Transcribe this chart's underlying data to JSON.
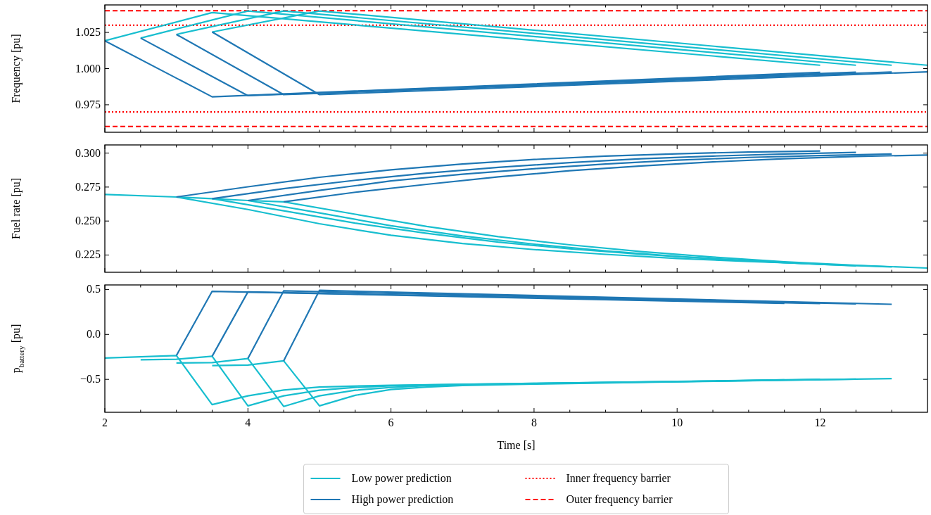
{
  "chart_data": [
    {
      "type": "line",
      "ylabel": "Frequency [pu]",
      "xlim": [
        2,
        13.5
      ],
      "ylim": [
        0.956,
        1.044
      ],
      "xticks": [
        2,
        {
          "value": 2.5,
          "label": null
        },
        {
          "value": 3,
          "label": null
        },
        {
          "value": 3.5,
          "label": null
        },
        4,
        {
          "value": 4.5,
          "label": null
        },
        {
          "value": 5,
          "label": null
        },
        {
          "value": 5.5,
          "label": null
        },
        6,
        {
          "value": 6.5,
          "label": null
        },
        {
          "value": 7,
          "label": null
        },
        {
          "value": 7.5,
          "label": null
        },
        8,
        {
          "value": 8.5,
          "label": null
        },
        {
          "value": 9,
          "label": null
        },
        {
          "value": 9.5,
          "label": null
        },
        10,
        {
          "value": 10.5,
          "label": null
        },
        {
          "value": 11,
          "label": null
        },
        {
          "value": 11.5,
          "label": null
        },
        12,
        {
          "value": 12.5,
          "label": null
        },
        {
          "value": 13,
          "label": null
        }
      ],
      "yticks": [
        0.975,
        {
          "value": 1,
          "label": "1.000"
        },
        1.025
      ],
      "tick_labels": "y",
      "legend": "bottom",
      "ref_lines": [
        {
          "axis": "y",
          "value": 1.03,
          "label": "Inner frequency barrier",
          "color": "#ff0000",
          "line_style": "dotted"
        },
        {
          "axis": "y",
          "value": 0.97,
          "color": "#ff0000",
          "line_style": "dotted"
        },
        {
          "axis": "y",
          "value": 1.04,
          "label": "Outer frequency barrier",
          "color": "#ff0000",
          "line_style": "dashed"
        },
        {
          "axis": "y",
          "value": 0.96,
          "color": "#ff0000",
          "line_style": "dashed"
        }
      ],
      "series": [
        {
          "name": "Low power prediction",
          "color": "#17becf",
          "x": [
            2,
            3.5,
            12
          ],
          "values": [
            1.0192,
            1.0387,
            1.0023
          ]
        },
        {
          "color": "#17becf",
          "x": [
            2.5,
            4,
            12.5
          ],
          "values": [
            1.0211,
            1.0398,
            1.0023
          ]
        },
        {
          "color": "#17becf",
          "x": [
            3,
            4.5,
            13
          ],
          "values": [
            1.0236,
            1.0398,
            1.0023
          ]
        },
        {
          "color": "#17becf",
          "x": [
            3.5,
            5,
            13.5
          ],
          "values": [
            1.0253,
            1.0398,
            1.0023
          ]
        },
        {
          "name": "High power prediction",
          "color": "#1f77b4",
          "x": [
            2,
            3.5,
            12
          ],
          "values": [
            1.0192,
            0.9805,
            0.9974
          ]
        },
        {
          "color": "#1f77b4",
          "x": [
            2.5,
            4,
            12.5
          ],
          "values": [
            1.0211,
            0.9813,
            0.9975
          ]
        },
        {
          "color": "#1f77b4",
          "x": [
            3,
            4.5,
            13
          ],
          "values": [
            1.0236,
            0.982,
            0.9977
          ]
        },
        {
          "color": "#1f77b4",
          "x": [
            3.5,
            5,
            13.5
          ],
          "values": [
            1.0253,
            0.982,
            0.9978
          ]
        }
      ]
    },
    {
      "type": "line",
      "ylabel": "Fuel rate [pu]",
      "xlim": [
        2,
        13.5
      ],
      "ylim": [
        0.2123,
        0.306
      ],
      "xticks": [
        2,
        {
          "value": 2.5,
          "label": null
        },
        {
          "value": 3,
          "label": null
        },
        {
          "value": 3.5,
          "label": null
        },
        4,
        {
          "value": 4.5,
          "label": null
        },
        {
          "value": 5,
          "label": null
        },
        {
          "value": 5.5,
          "label": null
        },
        6,
        {
          "value": 6.5,
          "label": null
        },
        {
          "value": 7,
          "label": null
        },
        {
          "value": 7.5,
          "label": null
        },
        8,
        {
          "value": 8.5,
          "label": null
        },
        {
          "value": 9,
          "label": null
        },
        {
          "value": 9.5,
          "label": null
        },
        10,
        {
          "value": 10.5,
          "label": null
        },
        {
          "value": 11,
          "label": null
        },
        {
          "value": 11.5,
          "label": null
        },
        12,
        {
          "value": 12.5,
          "label": null
        },
        {
          "value": 13,
          "label": null
        }
      ],
      "yticks": [
        0.225,
        {
          "value": 0.25,
          "label": "0.250"
        },
        0.275,
        {
          "value": 0.3,
          "label": "0.300"
        }
      ],
      "tick_labels": "y",
      "series": [
        {
          "color": "#17becf",
          "x": [
            3,
            4,
            5,
            6,
            7,
            8,
            9,
            10,
            11,
            12
          ],
          "values": [
            0.2677,
            0.2585,
            0.248,
            0.2395,
            0.2335,
            0.229,
            0.2255,
            0.2225,
            0.2202,
            0.2184
          ]
        },
        {
          "color": "#17becf",
          "x": [
            3.5,
            4.5,
            5.5,
            6.5,
            7.5,
            8.5,
            9.5,
            10.5,
            11.5,
            12.5
          ],
          "values": [
            0.2665,
            0.2575,
            0.2485,
            0.241,
            0.2345,
            0.2295,
            0.2255,
            0.2222,
            0.2193,
            0.217
          ]
        },
        {
          "color": "#17becf",
          "x": [
            4,
            5,
            6,
            7,
            8,
            9,
            10,
            11,
            12,
            13
          ],
          "values": [
            0.2651,
            0.256,
            0.2465,
            0.239,
            0.233,
            0.228,
            0.224,
            0.2208,
            0.2182,
            0.2162
          ]
        },
        {
          "color": "#17becf",
          "x": [
            2,
            3,
            3.5,
            4,
            4.5,
            5.5,
            6.5,
            7.5,
            8.5,
            9.5,
            10.5,
            11.5,
            12.5,
            13.5
          ],
          "values": [
            0.2696,
            0.2677,
            0.2665,
            0.2651,
            0.2641,
            0.255,
            0.246,
            0.2385,
            0.2325,
            0.2275,
            0.2235,
            0.22,
            0.2174,
            0.2154
          ]
        },
        {
          "color": "#1f77b4",
          "x": [
            3,
            4,
            5,
            6,
            7,
            8,
            9,
            10,
            11,
            12
          ],
          "values": [
            0.2677,
            0.2752,
            0.2822,
            0.2877,
            0.292,
            0.2953,
            0.2978,
            0.2995,
            0.3008,
            0.3015
          ]
        },
        {
          "color": "#1f77b4",
          "x": [
            3.5,
            4.5,
            5.5,
            6.5,
            7.5,
            8.5,
            9.5,
            10.5,
            11.5,
            12.5
          ],
          "values": [
            0.2665,
            0.2738,
            0.28,
            0.2852,
            0.2895,
            0.293,
            0.2958,
            0.2978,
            0.2993,
            0.3005
          ]
        },
        {
          "color": "#1f77b4",
          "x": [
            4,
            5,
            6,
            7,
            8,
            9,
            10,
            11,
            12,
            13
          ],
          "values": [
            0.2651,
            0.2725,
            0.2795,
            0.2845,
            0.2885,
            0.292,
            0.2948,
            0.2968,
            0.2982,
            0.2993
          ]
        },
        {
          "color": "#1f77b4",
          "x": [
            4.5,
            5.5,
            6.5,
            7.5,
            8.5,
            9.5,
            10.5,
            11.5,
            12.5,
            13.5
          ],
          "values": [
            0.2641,
            0.2712,
            0.277,
            0.2825,
            0.287,
            0.2905,
            0.2935,
            0.2958,
            0.2975,
            0.2986
          ]
        }
      ]
    },
    {
      "type": "line",
      "ylabel": "p$_{battery}$ [pu]",
      "xlabel": "Time [s]",
      "xlim": [
        2,
        13.5
      ],
      "ylim": [
        -0.866,
        0.55
      ],
      "xticks": [
        2,
        {
          "value": 2.5,
          "label": null
        },
        {
          "value": 3,
          "label": null
        },
        {
          "value": 3.5,
          "label": null
        },
        4,
        {
          "value": 4.5,
          "label": null
        },
        {
          "value": 5,
          "label": null
        },
        {
          "value": 5.5,
          "label": null
        },
        6,
        {
          "value": 6.5,
          "label": null
        },
        {
          "value": 7,
          "label": null
        },
        {
          "value": 7.5,
          "label": null
        },
        8,
        {
          "value": 8.5,
          "label": null
        },
        {
          "value": 9,
          "label": null
        },
        {
          "value": 9.5,
          "label": null
        },
        10,
        {
          "value": 10.5,
          "label": null
        },
        {
          "value": 11,
          "label": null
        },
        {
          "value": 11.5,
          "label": null
        },
        12,
        {
          "value": 12.5,
          "label": null
        },
        {
          "value": 13,
          "label": null
        }
      ],
      "yticks": [
        {
          "value": -0.5,
          "label": "−0.5"
        },
        {
          "value": 0,
          "label": "0.0"
        },
        0.5
      ],
      "series": [
        {
          "color": "#17becf",
          "x": [
            2,
            3,
            3.5,
            4,
            4.5,
            5,
            6,
            8,
            10,
            11.5
          ],
          "values": [
            -0.263,
            -0.235,
            -0.781,
            -0.683,
            -0.619,
            -0.585,
            -0.565,
            -0.545,
            -0.525,
            -0.505
          ]
        },
        {
          "color": "#17becf",
          "x": [
            2.5,
            3,
            3.5,
            4,
            4.5,
            5,
            5.5,
            6,
            6.5,
            8,
            10,
            12
          ],
          "values": [
            -0.282,
            -0.277,
            -0.243,
            -0.795,
            -0.683,
            -0.621,
            -0.59,
            -0.572,
            -0.562,
            -0.545,
            -0.523,
            -0.5
          ]
        },
        {
          "color": "#17becf",
          "x": [
            3,
            3.5,
            4,
            4.5,
            5,
            5.5,
            6,
            6.5,
            8,
            10,
            12.5
          ],
          "values": [
            -0.318,
            -0.313,
            -0.268,
            -0.801,
            -0.683,
            -0.621,
            -0.59,
            -0.57,
            -0.547,
            -0.525,
            -0.497
          ]
        },
        {
          "color": "#17becf",
          "x": [
            3.5,
            4,
            4.5,
            5,
            5.5,
            6,
            6.5,
            7,
            8,
            10,
            13
          ],
          "values": [
            -0.347,
            -0.341,
            -0.294,
            -0.795,
            -0.677,
            -0.613,
            -0.585,
            -0.568,
            -0.552,
            -0.527,
            -0.492
          ]
        },
        {
          "color": "#1f77b4",
          "x": [
            3,
            3.5,
            11.5
          ],
          "values": [
            -0.235,
            0.479,
            0.345
          ]
        },
        {
          "color": "#1f77b4",
          "x": [
            3.5,
            4,
            12
          ],
          "values": [
            -0.243,
            0.473,
            0.343
          ]
        },
        {
          "color": "#1f77b4",
          "x": [
            4,
            4.5,
            12.5
          ],
          "values": [
            -0.268,
            0.484,
            0.34
          ]
        },
        {
          "color": "#1f77b4",
          "x": [
            4.5,
            5,
            13
          ],
          "values": [
            -0.294,
            0.49,
            0.335
          ]
        }
      ]
    }
  ]
}
